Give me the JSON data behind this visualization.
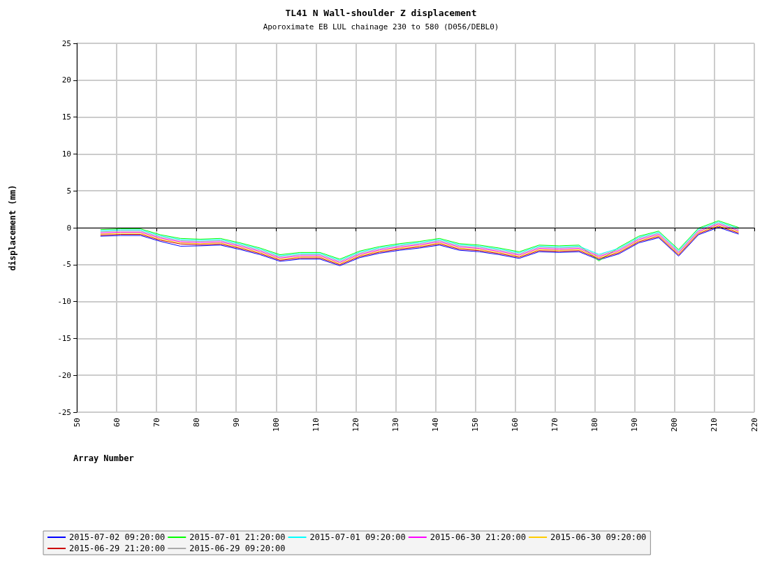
{
  "chart_data": {
    "type": "line",
    "title": "TL41 N Wall-shoulder Z displacement",
    "subtitle": "Aporoximate EB LUL chainage 230 to 580 (D056/DEBL0)",
    "xlabel": "Array Number",
    "ylabel": "displacement (mm)",
    "x": [
      56,
      61,
      66,
      71,
      76,
      81,
      86,
      91,
      96,
      101,
      106,
      111,
      116,
      121,
      126,
      131,
      136,
      141,
      146,
      151,
      156,
      161,
      166,
      171,
      176,
      181,
      186,
      191,
      196,
      201,
      206,
      211,
      216
    ],
    "series": [
      {
        "name": "2015-07-02 09:20:00",
        "color": "#0000ff",
        "values": [
          -1.15,
          -1.05,
          -1.05,
          -1.85,
          -2.5,
          -2.45,
          -2.35,
          -2.95,
          -3.65,
          -4.55,
          -4.25,
          -4.25,
          -5.15,
          -4.05,
          -3.45,
          -3.05,
          -2.75,
          -2.35,
          -3.05,
          -3.25,
          -3.65,
          -4.15,
          -3.25,
          -3.35,
          -3.25,
          -4.35,
          -3.55,
          -2.05,
          -1.35,
          -3.85,
          -0.95,
          0.05,
          -0.85
        ]
      },
      {
        "name": "2015-07-01 21:20:00",
        "color": "#00ff00",
        "values": [
          -0.25,
          -0.15,
          -0.15,
          -0.95,
          -1.45,
          -1.55,
          -1.45,
          -2.05,
          -2.75,
          -3.65,
          -3.35,
          -3.35,
          -4.25,
          -3.15,
          -2.55,
          -2.15,
          -1.85,
          -1.45,
          -2.15,
          -2.35,
          -2.75,
          -3.25,
          -2.35,
          -2.45,
          -2.35,
          -4.5,
          -2.65,
          -1.15,
          -0.45,
          -2.95,
          -0.05,
          0.95,
          0.05
        ]
      },
      {
        "name": "2015-07-01 09:20:00",
        "color": "#00ffff",
        "values": [
          -0.4,
          -0.3,
          -0.3,
          -1.1,
          -1.6,
          -1.7,
          -1.6,
          -2.2,
          -2.9,
          -3.8,
          -3.5,
          -3.5,
          -4.4,
          -3.3,
          -2.7,
          -2.3,
          -2.0,
          -1.6,
          -2.3,
          -2.5,
          -2.9,
          -3.4,
          -2.5,
          -2.6,
          -2.5,
          -3.6,
          -2.8,
          -1.3,
          -0.6,
          -3.1,
          -0.2,
          0.8,
          -0.1
        ]
      },
      {
        "name": "2015-06-30 21:20:00",
        "color": "#ff00ff",
        "values": [
          -0.7,
          -0.6,
          -0.6,
          -1.4,
          -1.9,
          -2.0,
          -1.9,
          -2.5,
          -3.2,
          -4.1,
          -3.8,
          -3.8,
          -4.7,
          -3.6,
          -3.0,
          -2.6,
          -2.3,
          -1.9,
          -2.6,
          -2.8,
          -3.2,
          -3.7,
          -2.8,
          -2.9,
          -2.8,
          -3.9,
          -3.1,
          -1.6,
          -0.9,
          -3.4,
          -0.5,
          0.5,
          -0.4
        ]
      },
      {
        "name": "2015-06-30 09:20:00",
        "color": "#ffcc00",
        "values": [
          -0.85,
          -0.75,
          -0.75,
          -1.55,
          -2.05,
          -2.15,
          -2.05,
          -2.65,
          -3.35,
          -4.25,
          -3.95,
          -3.95,
          -4.85,
          -3.75,
          -3.15,
          -2.75,
          -2.45,
          -2.05,
          -2.75,
          -2.95,
          -3.35,
          -3.85,
          -2.95,
          -3.05,
          -2.95,
          -4.05,
          -3.25,
          -1.75,
          -1.05,
          -3.55,
          -0.65,
          0.35,
          -0.55
        ]
      },
      {
        "name": "2015-06-29 21:20:00",
        "color": "#cc0000",
        "values": [
          -1.0,
          -0.9,
          -0.9,
          -1.7,
          -2.2,
          -2.3,
          -2.2,
          -2.8,
          -3.5,
          -4.4,
          -4.1,
          -4.1,
          -5.0,
          -3.9,
          -3.3,
          -2.9,
          -2.6,
          -2.2,
          -2.9,
          -3.1,
          -3.5,
          -4.0,
          -3.1,
          -3.2,
          -3.1,
          -4.2,
          -3.4,
          -1.9,
          -1.2,
          -3.7,
          -0.8,
          0.2,
          -0.7
        ]
      },
      {
        "name": "2015-06-29 09:20:00",
        "color": "#aaaaaa",
        "values": [
          -0.55,
          -0.45,
          -0.45,
          -1.25,
          -1.75,
          -1.85,
          -1.75,
          -2.35,
          -3.05,
          -3.95,
          -3.65,
          -3.65,
          -4.55,
          -3.45,
          -2.85,
          -2.45,
          -2.15,
          -1.75,
          -2.45,
          -2.65,
          -3.05,
          -3.55,
          -2.65,
          -2.75,
          -2.65,
          -3.75,
          -2.95,
          -1.45,
          -0.75,
          -3.25,
          -0.35,
          0.65,
          -0.25
        ]
      }
    ],
    "xlim": [
      50,
      220
    ],
    "xticks": [
      50,
      60,
      70,
      80,
      90,
      100,
      110,
      120,
      130,
      140,
      150,
      160,
      170,
      180,
      190,
      200,
      210,
      220
    ],
    "ylim": [
      -25,
      25
    ],
    "yticks": [
      -25,
      -20,
      -15,
      -10,
      -5,
      0,
      5,
      10,
      15,
      20,
      25
    ],
    "ref_lines": [
      {
        "axis": "y",
        "value": 0,
        "color": "#000000"
      }
    ],
    "grid": true,
    "legend": "bottom",
    "marker": "none",
    "line_style": "solid"
  }
}
